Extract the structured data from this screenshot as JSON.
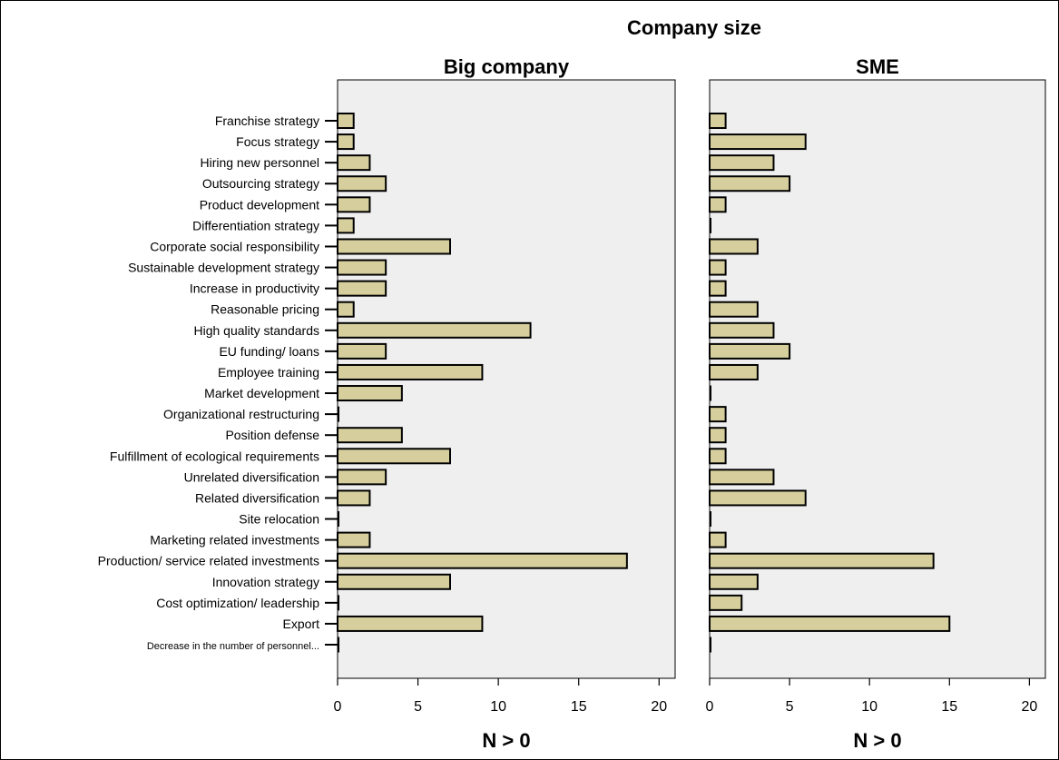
{
  "chart_data": {
    "type": "bar",
    "orientation": "horizontal",
    "title": "Company size",
    "categories": [
      "Franchise strategy",
      "Focus strategy",
      "Hiring new personnel",
      "Outsourcing strategy",
      "Product development",
      "Differentiation strategy",
      "Corporate social responsibility",
      "Sustainable development strategy",
      "Increase in productivity",
      "Reasonable pricing",
      "High quality standards",
      "EU funding/ loans",
      "Employee training",
      "Market development",
      "Organizational restructuring",
      "Position defense",
      "Fulfillment of ecological requirements",
      "Unrelated diversification",
      "Related diversification",
      "Site relocation",
      "Marketing related investments",
      "Production/ service related investments",
      "Innovation strategy",
      "Cost optimization/ leadership",
      "Export",
      "Decrease in the number of personnel..."
    ],
    "panels": [
      {
        "name": "Big company",
        "xlabel": "N > 0",
        "values": [
          1,
          1,
          2,
          3,
          2,
          1,
          7,
          3,
          3,
          1,
          12,
          3,
          9,
          4,
          0,
          4,
          7,
          3,
          2,
          0,
          2,
          18,
          7,
          0,
          9,
          0
        ]
      },
      {
        "name": "SME",
        "xlabel": "N > 0",
        "values": [
          1,
          6,
          4,
          5,
          1,
          0,
          3,
          1,
          1,
          3,
          4,
          5,
          3,
          0,
          1,
          1,
          1,
          4,
          6,
          0,
          1,
          14,
          3,
          2,
          15,
          0
        ]
      }
    ],
    "xlim": [
      0,
      21
    ],
    "xticks": [
      0,
      5,
      10,
      15,
      20
    ],
    "colors": {
      "bar_fill": "#d6cf9d",
      "bar_stroke": "#000000",
      "panel_bg": "#efefef"
    }
  }
}
